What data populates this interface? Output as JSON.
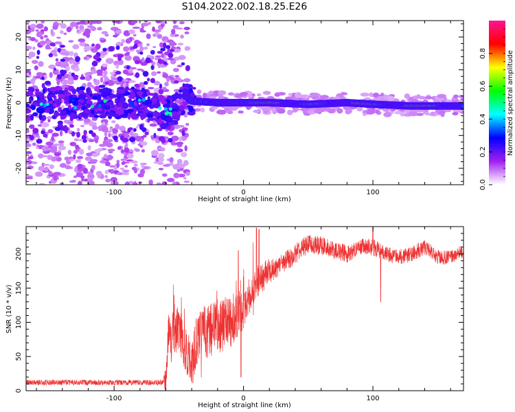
{
  "title": "S104.2022.002.18.25.E26",
  "chart_data": [
    {
      "type": "heatmap",
      "xlabel": "Height of straight line (km)",
      "ylabel": "Frequency (Hz)",
      "xlim": [
        -168,
        170
      ],
      "ylim": [
        -25,
        25
      ],
      "x_ticks": [
        -100,
        0,
        100
      ],
      "y_ticks": [
        -20,
        -10,
        0,
        10,
        20
      ],
      "colorbar": {
        "label": "Normalized spectral amplitude",
        "range": [
          0,
          1
        ],
        "ticks": [
          "0.0",
          "0.2",
          "0.4",
          "0.6",
          "0.8"
        ],
        "colors": [
          "#ffffff",
          "#a020f0",
          "#0000ff",
          "#00ffff",
          "#00ff00",
          "#ffff00",
          "#ff0000",
          "#ff1493"
        ]
      },
      "ridge": {
        "x": [
          -168,
          -120,
          -80,
          -60,
          -50,
          -45,
          -40,
          -20,
          0,
          20,
          50,
          80,
          100,
          130,
          170
        ],
        "y": [
          -0.5,
          0,
          0,
          -3,
          -2,
          2,
          0.5,
          0,
          0,
          0,
          -0.5,
          0,
          -0.5,
          -1,
          -1
        ]
      }
    },
    {
      "type": "line",
      "xlabel": "Height of straight line (km)",
      "ylabel": "SNR (10 * v/v)",
      "xlim": [
        -168,
        170
      ],
      "ylim": [
        0,
        240
      ],
      "x_ticks": [
        -100,
        0,
        100
      ],
      "y_ticks": [
        0,
        50,
        100,
        150,
        200
      ],
      "color": "#ee3333",
      "envelope": {
        "x": [
          -168,
          -140,
          -100,
          -70,
          -60,
          -58,
          -50,
          -45,
          -40,
          -35,
          -30,
          -20,
          -10,
          0,
          10,
          20,
          30,
          40,
          50,
          60,
          70,
          80,
          90,
          100,
          110,
          120,
          130,
          140,
          150,
          160,
          170
        ],
        "y": [
          12,
          12,
          12,
          12,
          12,
          80,
          90,
          60,
          40,
          80,
          85,
          95,
          100,
          120,
          160,
          175,
          185,
          200,
          215,
          212,
          205,
          200,
          210,
          210,
          200,
          195,
          200,
          210,
          195,
          195,
          205
        ]
      },
      "noise": {
        "x": [
          -168,
          -62,
          -60,
          -30,
          -10,
          0,
          30,
          170
        ],
        "amp": [
          4,
          4,
          30,
          40,
          40,
          30,
          15,
          10
        ]
      },
      "spikes": [
        {
          "x": 10,
          "y": 238
        },
        {
          "x": 12,
          "y": 236
        },
        {
          "x": -4,
          "y": 205
        },
        {
          "x": -2,
          "y": 20
        },
        {
          "x": 100,
          "y": 240
        },
        {
          "x": 106,
          "y": 130
        }
      ]
    }
  ]
}
